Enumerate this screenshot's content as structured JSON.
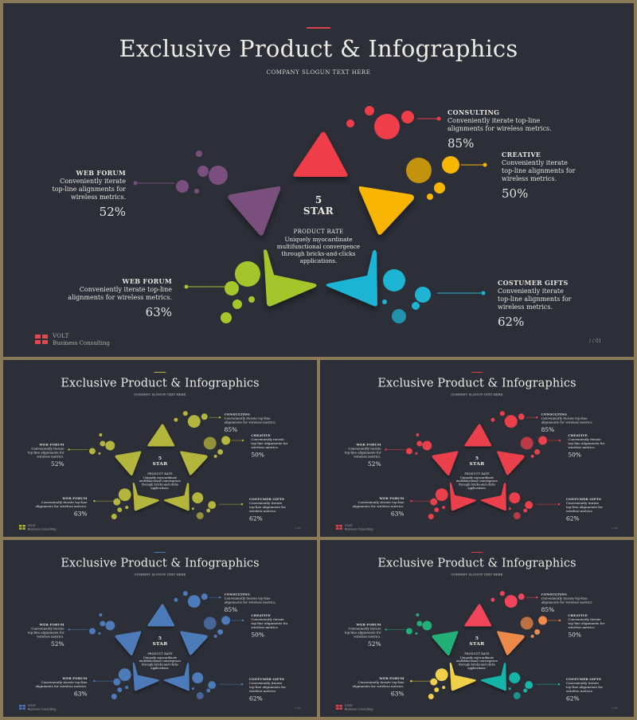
{
  "slide": {
    "title": "Exclusive Product & Infographics",
    "slogan": "COMPANY SLOGUN TEXT HERE",
    "center_number": "5",
    "center_star": "STAR",
    "center_rate_title": "PRODUCT RATE",
    "center_rate_desc": "Uniquely myocardinate multifunctional convergence through bricks-and-clicks applications.",
    "brand_name": "VOLT",
    "brand_sub": "Business  Consulting",
    "page_number": "/ / 01"
  },
  "labels": {
    "consulting": {
      "title": "CONSULTING",
      "desc": "Conveniently iterate top-line alignments for wireless metrics.",
      "pct": "85%"
    },
    "creative": {
      "title": "CREATIVE",
      "desc": "Conveniently iterate top-line alignments for wireless metrics.",
      "pct": "50%"
    },
    "web_forum_top": {
      "title": "WEB FORUM",
      "desc": "Conveniently iterate top-line alignments for wireless metrics.",
      "pct": "52%"
    },
    "web_forum_bottom": {
      "title": "WEB FORUM",
      "desc": "Conveniently iterate top-line alignments for wireless metrics.",
      "pct": "63%"
    },
    "costumer_gifts": {
      "title": "COSTUMER GIFTS",
      "desc": "Conveniently iterate top-line alignments for wireless metrics.",
      "pct": "62%"
    }
  },
  "themes": [
    {
      "name": "multicolor",
      "accent": "#d9424a",
      "top": "#ef3e4a",
      "right": "#f7b500",
      "bottom_right": "#1eb4d4",
      "bottom_left": "#a5c52b",
      "left": "#7a4f7d",
      "icon": "#e04850"
    },
    {
      "name": "olive",
      "accent": "#b8b845",
      "top": "#b4b53c",
      "right": "#b4b53c",
      "bottom_right": "#b4b53c",
      "bottom_left": "#b4b53c",
      "left": "#b4b53c",
      "icon": "#b4b53c"
    },
    {
      "name": "red",
      "accent": "#e2404a",
      "top": "#e9404c",
      "right": "#e9404c",
      "bottom_right": "#e9404c",
      "bottom_left": "#e9404c",
      "left": "#e9404c",
      "icon": "#e04850"
    },
    {
      "name": "blue",
      "accent": "#4b7ab6",
      "top": "#4d7ab8",
      "right": "#4d7ab8",
      "bottom_right": "#4d7ab8",
      "bottom_left": "#4d7ab8",
      "left": "#4d7ab8",
      "icon": "#4d7ab8"
    },
    {
      "name": "multicolor-alt",
      "accent": "#e2404a",
      "top": "#f0445a",
      "right": "#ee8a4a",
      "bottom_right": "#17b4a8",
      "bottom_left": "#f0d04a",
      "left": "#22b078",
      "icon": "#e04850"
    }
  ]
}
